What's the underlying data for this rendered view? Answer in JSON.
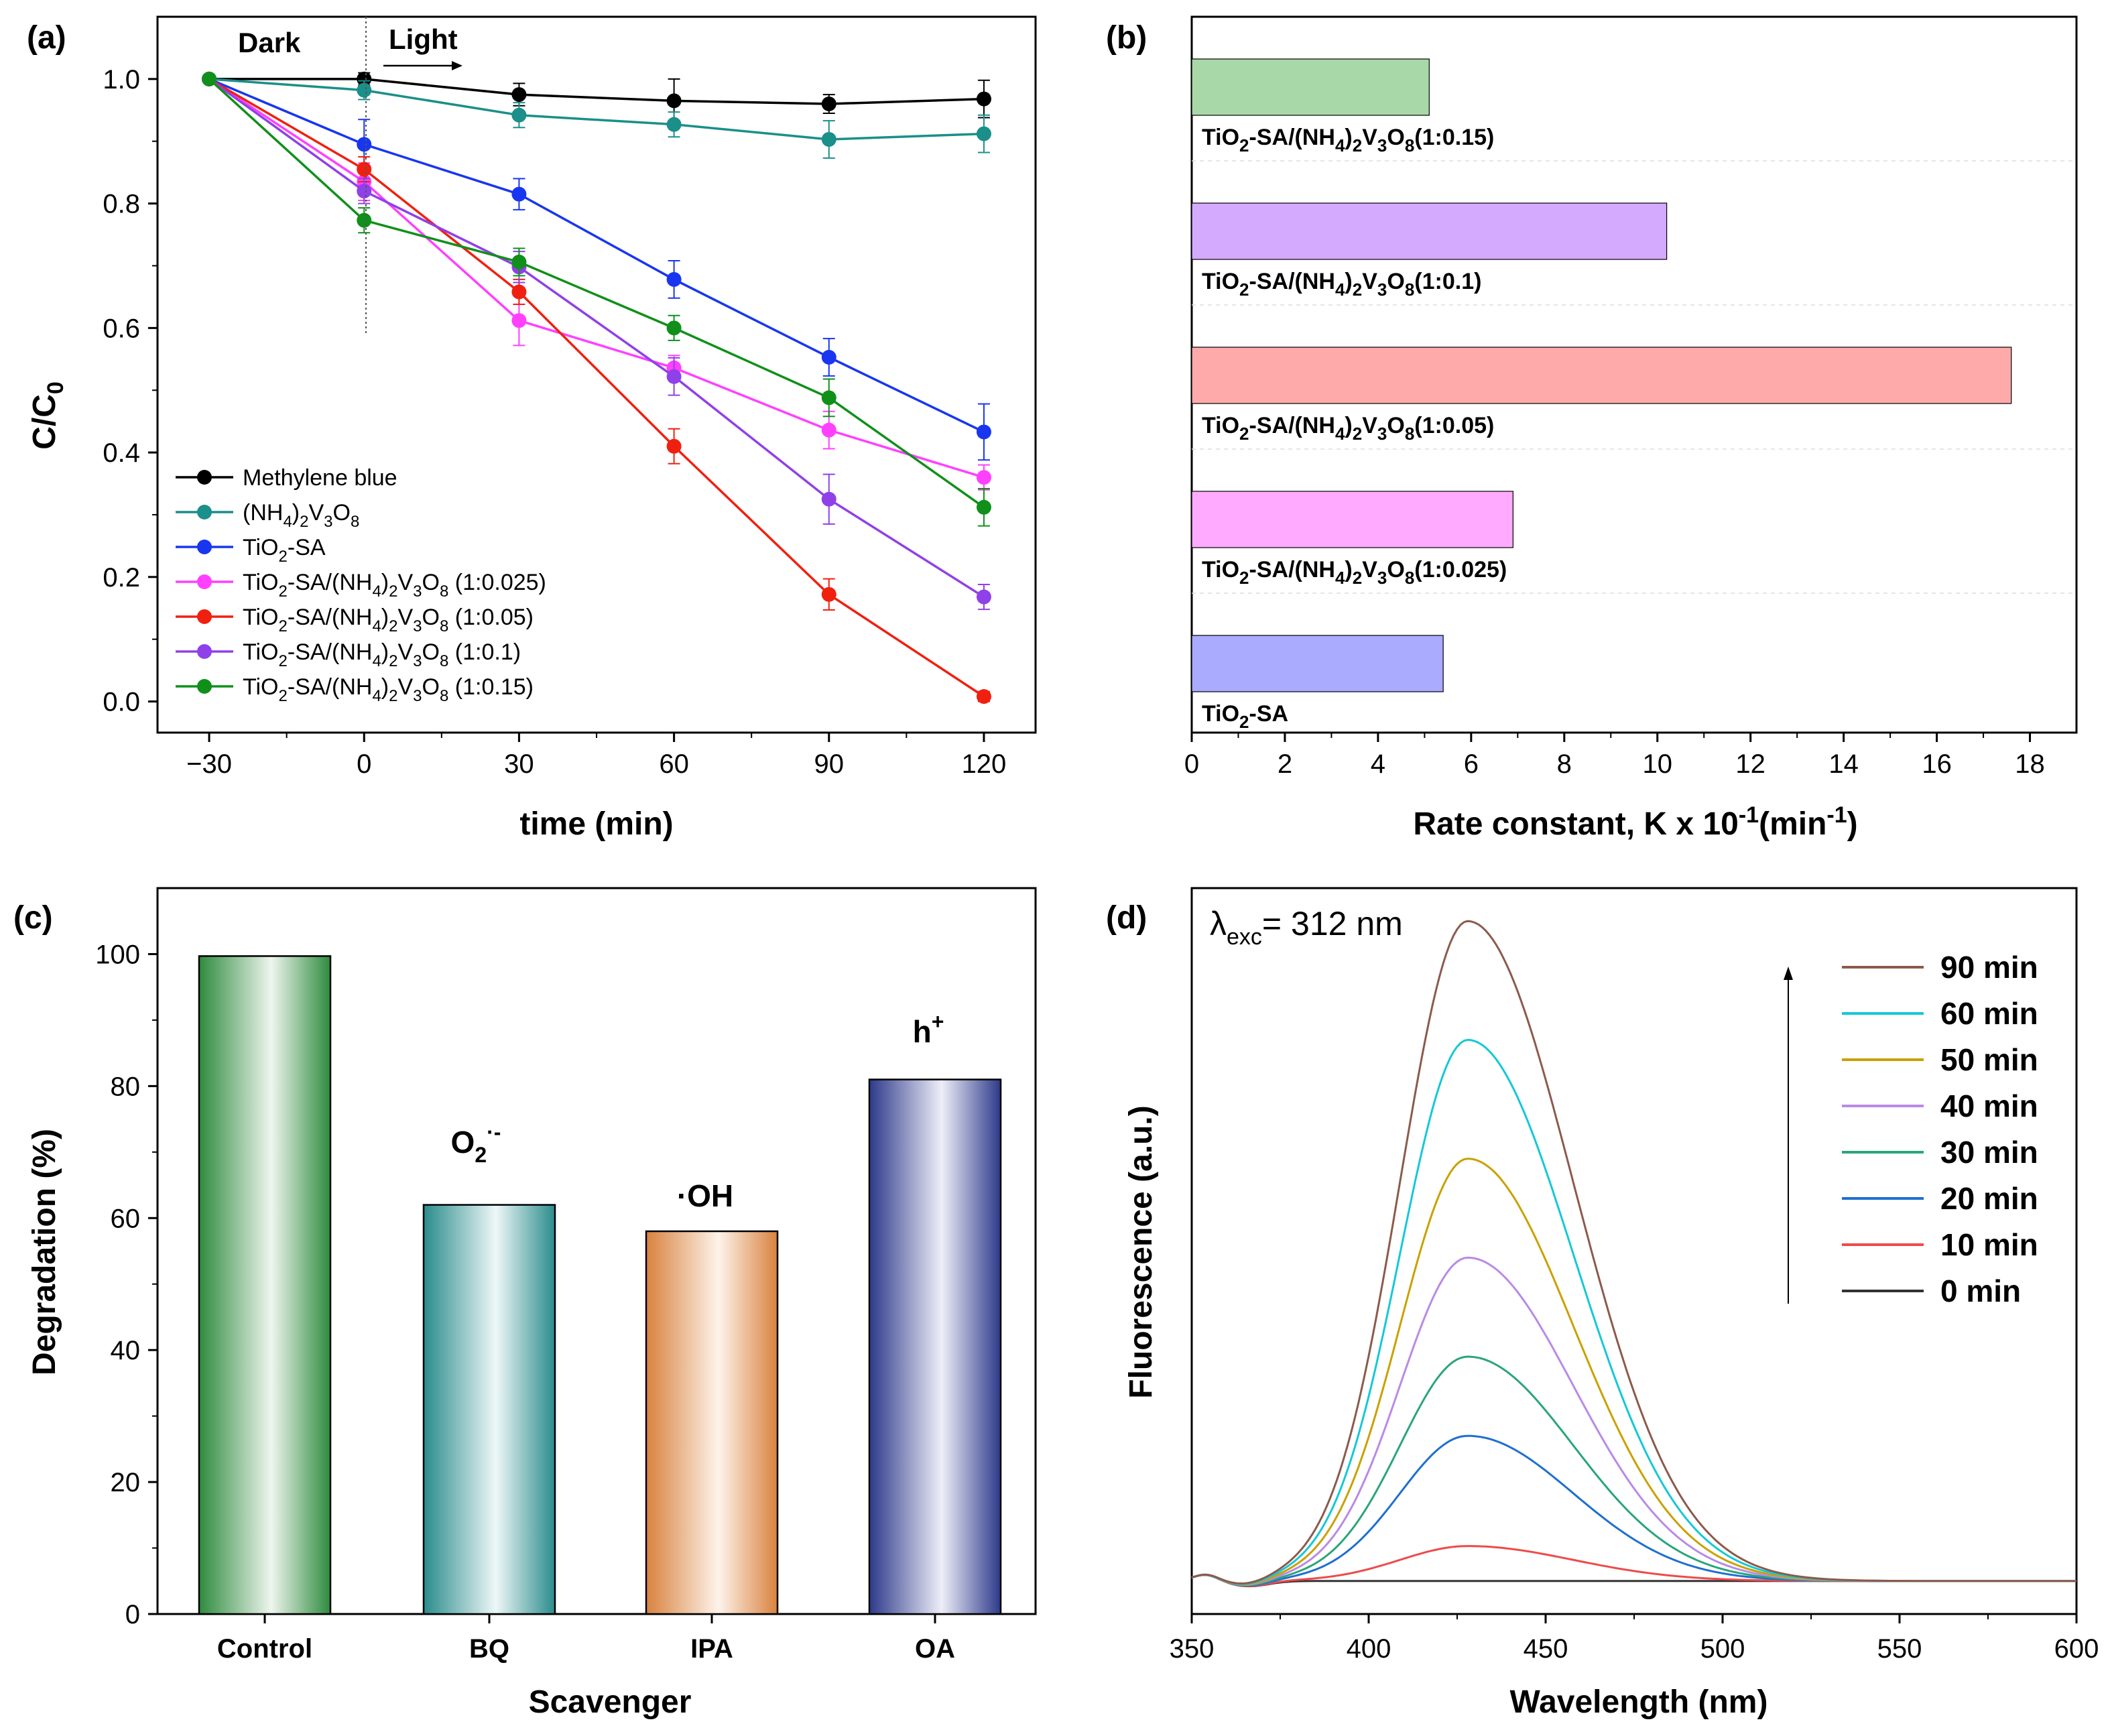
{
  "chart_data": [
    {
      "panel": "(a)",
      "type": "line",
      "xlabel": "time (min)",
      "ylabel": "C/C0",
      "ylabel_main": "C/C",
      "ylabel_sub": "0",
      "x": [
        -30,
        0,
        30,
        60,
        90,
        120
      ],
      "xticks": [
        "−30",
        "0",
        "30",
        "60",
        "90",
        "120"
      ],
      "yticks": [
        "0.0",
        "0.2",
        "0.4",
        "0.6",
        "0.8",
        "1.0"
      ],
      "xlim": [
        -40,
        130
      ],
      "ylim": [
        -0.05,
        1.1
      ],
      "annotations": {
        "dark": "Dark",
        "light": "Light"
      },
      "legend_position": "bottom-left",
      "series": [
        {
          "name": "Methylene blue",
          "color": "#000000",
          "values": [
            1.0,
            1.0,
            0.975,
            0.965,
            0.96,
            0.968
          ],
          "err": [
            0,
            0.01,
            0.018,
            0.035,
            0.015,
            0.03
          ]
        },
        {
          "name": "(NH4)2V3O8",
          "color": "#1b8f8a",
          "values": [
            1.0,
            0.982,
            0.942,
            0.927,
            0.903,
            0.912
          ],
          "err": [
            0,
            0.015,
            0.02,
            0.02,
            0.03,
            0.03
          ]
        },
        {
          "name": "TiO2-SA",
          "color": "#1836f0",
          "values": [
            1.0,
            0.895,
            0.815,
            0.678,
            0.553,
            0.433
          ],
          "err": [
            0,
            0.04,
            0.025,
            0.03,
            0.03,
            0.045
          ]
        },
        {
          "name": "TiO2-SA/(NH4)2V3O8 (1:0.025)",
          "color": "#ff40ff",
          "values": [
            1.0,
            0.835,
            0.612,
            0.536,
            0.436,
            0.36
          ],
          "err": [
            0,
            0.03,
            0.04,
            0.02,
            0.03,
            0.02
          ]
        },
        {
          "name": "TiO2-SA/(NH4)2V3O8 (1:0.05)",
          "color": "#f02010",
          "values": [
            1.0,
            0.855,
            0.658,
            0.41,
            0.172,
            0.008
          ],
          "err": [
            0,
            0.02,
            0.02,
            0.028,
            0.025,
            0.008
          ]
        },
        {
          "name": "TiO2-SA/(NH4)2V3O8 (1:0.1)",
          "color": "#9040e8",
          "values": [
            1.0,
            0.82,
            0.698,
            0.522,
            0.325,
            0.168
          ],
          "err": [
            0,
            0.02,
            0.025,
            0.03,
            0.04,
            0.02
          ]
        },
        {
          "name": "TiO2-SA/(NH4)2V3O8 (1:0.15)",
          "color": "#10901a",
          "values": [
            1.0,
            0.773,
            0.706,
            0.6,
            0.488,
            0.312
          ],
          "err": [
            0,
            0.02,
            0.022,
            0.02,
            0.03,
            0.03
          ]
        }
      ],
      "legend_labels": [
        {
          "main": "Methylene blue"
        },
        {
          "main": "(NH",
          "s1": "4",
          "m2": ")",
          "s2": "2",
          "m3": "V",
          "s3": "3",
          "m4": "O",
          "s4": "8"
        },
        {
          "main": "TiO",
          "s1": "2",
          "m2": "-SA"
        },
        {
          "main": "TiO",
          "s1": "2",
          "m2": "-SA/(NH",
          "s2": "4",
          "m3": ")",
          "s3": "2",
          "m4": "V",
          "s4": "3",
          "m5": "O",
          "s5": "8",
          "m6": " (1:0.025)"
        },
        {
          "main": "TiO",
          "s1": "2",
          "m2": "-SA/(NH",
          "s2": "4",
          "m3": ")",
          "s3": "2",
          "m4": "V",
          "s4": "3",
          "m5": "O",
          "s5": "8",
          "m6": " (1:0.05)"
        },
        {
          "main": "TiO",
          "s1": "2",
          "m2": "-SA/(NH",
          "s2": "4",
          "m3": ")",
          "s3": "2",
          "m4": "V",
          "s4": "3",
          "m5": "O",
          "s5": "8",
          "m6": " (1:0.1)"
        },
        {
          "main": "TiO",
          "s1": "2",
          "m2": "-SA/(NH",
          "s2": "4",
          "m3": ")",
          "s3": "2",
          "m4": "V",
          "s4": "3",
          "m5": "O",
          "s5": "8",
          "m6": " (1:0.15)"
        }
      ]
    },
    {
      "panel": "(b)",
      "type": "bar",
      "orientation": "horizontal",
      "xlabel": "Rate constant, K x 10-1(min-1)",
      "xlabel_parts": {
        "a": "Rate constant, K x 10",
        "sup1": "-1",
        "b": "(min",
        "sup2": "-1",
        "c": ")"
      },
      "xticks": [
        "0",
        "2",
        "4",
        "6",
        "8",
        "10",
        "12",
        "14",
        "16",
        "18"
      ],
      "xlim": [
        0,
        19
      ],
      "bars": [
        {
          "name": "TiO2-SA/(NH4)2V3O8(1:0.15)",
          "value": 5.1,
          "color": "#a8d8a8"
        },
        {
          "name": "TiO2-SA/(NH4)2V3O8(1:0.1)",
          "value": 10.2,
          "color": "#d4aaff"
        },
        {
          "name": "TiO2-SA/(NH4)2V3O8(1:0.05)",
          "value": 17.6,
          "color": "#ffaaaa"
        },
        {
          "name": "TiO2-SA/(NH4)2V3O8(1:0.025)",
          "value": 6.9,
          "color": "#ffaaff"
        },
        {
          "name": "TiO2-SA",
          "value": 5.4,
          "color": "#aaaaff"
        }
      ],
      "bar_labels": [
        {
          "main": "TiO",
          "s1": "2",
          "m2": "-SA/(NH",
          "s2": "4",
          "m3": ")",
          "s3": "2",
          "m4": "V",
          "s4": "3",
          "m5": "O",
          "s5": "8",
          "m6": "(1:0.15)"
        },
        {
          "main": "TiO",
          "s1": "2",
          "m2": "-SA/(NH",
          "s2": "4",
          "m3": ")",
          "s3": "2",
          "m4": "V",
          "s4": "3",
          "m5": "O",
          "s5": "8",
          "m6": "(1:0.1)"
        },
        {
          "main": "TiO",
          "s1": "2",
          "m2": "-SA/(NH",
          "s2": "4",
          "m3": ")",
          "s3": "2",
          "m4": "V",
          "s4": "3",
          "m5": "O",
          "s5": "8",
          "m6": "(1:0.05)"
        },
        {
          "main": "TiO",
          "s1": "2",
          "m2": "-SA/(NH",
          "s2": "4",
          "m3": ")",
          "s3": "2",
          "m4": "V",
          "s4": "3",
          "m5": "O",
          "s5": "8",
          "m6": "(1:0.025)"
        },
        {
          "main": "TiO",
          "s1": "2",
          "m2": "-SA"
        }
      ]
    },
    {
      "panel": "(c)",
      "type": "bar",
      "xlabel": "Scavenger",
      "ylabel": "Degradation (%)",
      "categories": [
        "Control",
        "BQ",
        "IPA",
        "OA"
      ],
      "values": [
        99.7,
        62,
        58,
        81
      ],
      "colors": [
        "#2e8b3e",
        "#2a8c8c",
        "#d9823e",
        "#2d3a8a"
      ],
      "yticks": [
        "0",
        "20",
        "40",
        "60",
        "80",
        "100"
      ],
      "ylim": [
        0,
        110
      ],
      "species_labels": {
        "bq": "O",
        "bq_sub": "2",
        "bq_sup": "·-",
        "ipa": "·OH",
        "oa": "h",
        "oa_sup": "+"
      }
    },
    {
      "panel": "(d)",
      "type": "line",
      "xlabel": "Wavelength (nm)",
      "ylabel": "Fluorescence (a.u.)",
      "xticks": [
        "350",
        "400",
        "450",
        "500",
        "550",
        "600"
      ],
      "xlim": [
        350,
        600
      ],
      "ylim": [
        -0.05,
        1.05
      ],
      "annotation": {
        "main": "λ",
        "sub": "exc",
        "rest": "= 312 nm"
      },
      "peak_wavelength": 428,
      "series": [
        {
          "name": "90 min",
          "color": "#8b5a4c",
          "peak": 1.0
        },
        {
          "name": "60 min",
          "color": "#15c8d6",
          "peak": 0.82
        },
        {
          "name": "50 min",
          "color": "#c9a100",
          "peak": 0.64
        },
        {
          "name": "40 min",
          "color": "#b98ae6",
          "peak": 0.49
        },
        {
          "name": "30 min",
          "color": "#2aa57a",
          "peak": 0.34
        },
        {
          "name": "20 min",
          "color": "#1e6fd0",
          "peak": 0.22
        },
        {
          "name": "10 min",
          "color": "#ef4a4a",
          "peak": 0.053
        },
        {
          "name": "0 min",
          "color": "#333333",
          "peak": 0.0
        }
      ]
    }
  ]
}
